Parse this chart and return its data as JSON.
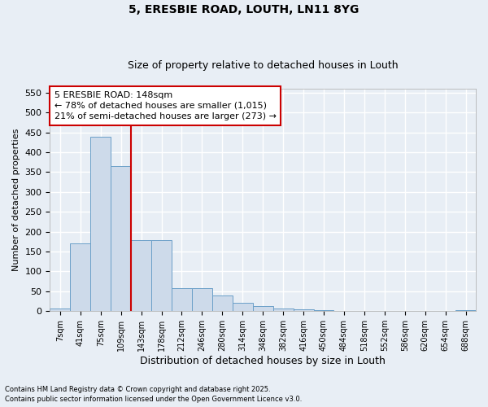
{
  "title1": "5, ERESBIE ROAD, LOUTH, LN11 8YG",
  "title2": "Size of property relative to detached houses in Louth",
  "xlabel": "Distribution of detached houses by size in Louth",
  "ylabel": "Number of detached properties",
  "bin_labels": [
    "7sqm",
    "41sqm",
    "75sqm",
    "109sqm",
    "143sqm",
    "178sqm",
    "212sqm",
    "246sqm",
    "280sqm",
    "314sqm",
    "348sqm",
    "382sqm",
    "416sqm",
    "450sqm",
    "484sqm",
    "518sqm",
    "552sqm",
    "586sqm",
    "620sqm",
    "654sqm",
    "688sqm"
  ],
  "bar_values": [
    7,
    170,
    440,
    365,
    178,
    178,
    57,
    57,
    40,
    21,
    12,
    6,
    4,
    2,
    1,
    1,
    1,
    0,
    0,
    0,
    2
  ],
  "bar_color": "#cddaea",
  "bar_edge_color": "#6b9fc8",
  "vline_color": "#cc0000",
  "annotation_text": "5 ERESBIE ROAD: 148sqm\n← 78% of detached houses are smaller (1,015)\n21% of semi-detached houses are larger (273) →",
  "annotation_box_color": "#ffffff",
  "annotation_border_color": "#cc0000",
  "ylim": [
    0,
    560
  ],
  "yticks": [
    0,
    50,
    100,
    150,
    200,
    250,
    300,
    350,
    400,
    450,
    500,
    550
  ],
  "footer1": "Contains HM Land Registry data © Crown copyright and database right 2025.",
  "footer2": "Contains public sector information licensed under the Open Government Licence v3.0.",
  "bg_color": "#e8eef5",
  "grid_color": "#ffffff"
}
